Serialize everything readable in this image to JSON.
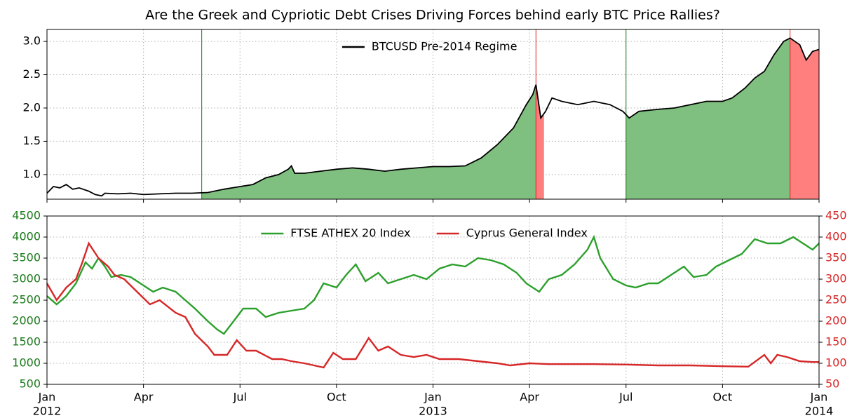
{
  "chart_data": [
    {
      "type": "line",
      "title": "Are the Greek and Cypriotic Debt Crises Driving Forces behind early BTC Price Rallies?",
      "xlim": [
        0,
        24
      ],
      "xticks": [
        0,
        3,
        6,
        9,
        12,
        15,
        18,
        21,
        24
      ],
      "ylim": [
        0.63,
        3.18
      ],
      "yticks": [
        {
          "value": 1,
          "label": "1.0"
        },
        {
          "value": 1.5,
          "label": "1.5"
        },
        {
          "value": 2,
          "label": "2.0"
        },
        {
          "value": 2.5,
          "label": "2.5"
        },
        {
          "value": 3,
          "label": "3.0"
        }
      ],
      "grid": true,
      "legend": "upper center",
      "series": [
        {
          "name": "BTCUSD Pre-2014 Regime",
          "color": "#000000",
          "x": [
            0,
            0.2,
            0.4,
            0.6,
            0.8,
            1.0,
            1.3,
            1.5,
            1.7,
            1.8,
            2.2,
            2.6,
            3,
            3.5,
            4,
            4.5,
            5,
            5.5,
            6,
            6.4,
            6.8,
            7.2,
            7.5,
            7.6,
            7.7,
            8,
            8.5,
            9,
            9.5,
            10,
            10.5,
            11,
            11.5,
            12,
            12.5,
            13,
            13.5,
            14,
            14.5,
            14.9,
            15.1,
            15.2,
            15.35,
            15.5,
            15.7,
            16,
            16.5,
            17,
            17.5,
            17.9,
            18.1,
            18.4,
            19,
            19.5,
            20,
            20.5,
            21,
            21.3,
            21.7,
            22,
            22.3,
            22.6,
            22.9,
            23.1,
            23.4,
            23.6,
            23.8,
            24
          ],
          "values": [
            0.72,
            0.82,
            0.8,
            0.85,
            0.78,
            0.8,
            0.75,
            0.7,
            0.68,
            0.72,
            0.71,
            0.72,
            0.7,
            0.71,
            0.72,
            0.72,
            0.73,
            0.78,
            0.82,
            0.85,
            0.95,
            1.0,
            1.08,
            1.13,
            1.02,
            1.02,
            1.05,
            1.08,
            1.1,
            1.08,
            1.05,
            1.08,
            1.1,
            1.12,
            1.12,
            1.13,
            1.25,
            1.45,
            1.7,
            2.05,
            2.2,
            2.35,
            1.85,
            1.95,
            2.15,
            2.1,
            2.05,
            2.1,
            2.05,
            1.95,
            1.85,
            1.95,
            1.98,
            2.0,
            2.05,
            2.1,
            2.1,
            2.15,
            2.3,
            2.45,
            2.55,
            2.8,
            3.0,
            3.05,
            2.95,
            2.72,
            2.85,
            2.88
          ]
        }
      ],
      "regions": [
        {
          "start": 4.81,
          "end": 15.2,
          "color": "#7fbf7f",
          "line": "#1a7a1a"
        },
        {
          "start": 15.2,
          "end": 15.45,
          "color": "#ff7f7f",
          "line": "#e02020"
        },
        {
          "start": 18.0,
          "end": 23.1,
          "color": "#7fbf7f",
          "line": "#1a7a1a"
        },
        {
          "start": 23.1,
          "end": 24,
          "color": "#ff7f7f",
          "line": "#e02020"
        }
      ]
    },
    {
      "type": "line",
      "xlim": [
        0,
        24
      ],
      "xticks": [
        {
          "value": 0,
          "label": "Jan",
          "year": "2012"
        },
        {
          "value": 3,
          "label": "Apr"
        },
        {
          "value": 6,
          "label": "Jul"
        },
        {
          "value": 9,
          "label": "Oct"
        },
        {
          "value": 12,
          "label": "Jan",
          "year": "2013"
        },
        {
          "value": 15,
          "label": "Apr"
        },
        {
          "value": 18,
          "label": "Jul"
        },
        {
          "value": 21,
          "label": "Oct"
        },
        {
          "value": 24,
          "label": "Jan",
          "year": "2014"
        }
      ],
      "ylim": [
        500,
        4500
      ],
      "yticks": [
        500,
        1000,
        1500,
        2000,
        2500,
        3000,
        3500,
        4000,
        4500
      ],
      "ytick_color": "#1a7a1a",
      "y2lim": [
        50,
        450
      ],
      "y2ticks": [
        50,
        100,
        150,
        200,
        250,
        300,
        350,
        400,
        450
      ],
      "y2tick_color": "#d62728",
      "grid": true,
      "legend": "upper center",
      "series": [
        {
          "name": "FTSE ATHEX 20 Index",
          "color": "#2ca02c",
          "x": [
            0,
            0.3,
            0.6,
            0.9,
            1.2,
            1.4,
            1.6,
            1.8,
            2.0,
            2.3,
            2.6,
            3,
            3.3,
            3.6,
            4,
            4.3,
            4.6,
            5,
            5.3,
            5.5,
            5.8,
            6.1,
            6.5,
            6.8,
            7.2,
            7.6,
            8,
            8.3,
            8.6,
            9,
            9.3,
            9.6,
            9.9,
            10.3,
            10.6,
            11,
            11.4,
            11.8,
            12.2,
            12.6,
            13,
            13.4,
            13.8,
            14.2,
            14.6,
            14.9,
            15.3,
            15.6,
            16,
            16.4,
            16.8,
            17,
            17.2,
            17.6,
            18,
            18.3,
            18.7,
            19,
            19.4,
            19.8,
            20.1,
            20.5,
            20.8,
            21.2,
            21.6,
            22,
            22.4,
            22.8,
            23.2,
            23.6,
            23.8,
            24
          ],
          "values": [
            2600,
            2400,
            2600,
            2900,
            3400,
            3250,
            3500,
            3300,
            3050,
            3100,
            3050,
            2850,
            2700,
            2800,
            2700,
            2500,
            2300,
            2000,
            1800,
            1700,
            2000,
            2300,
            2300,
            2100,
            2200,
            2250,
            2300,
            2500,
            2900,
            2800,
            3100,
            3350,
            2950,
            3150,
            2900,
            3000,
            3100,
            3000,
            3250,
            3350,
            3300,
            3500,
            3450,
            3350,
            3150,
            2900,
            2700,
            3000,
            3100,
            3350,
            3700,
            4000,
            3500,
            3000,
            2850,
            2800,
            2900,
            2900,
            3100,
            3300,
            3050,
            3100,
            3300,
            3450,
            3600,
            3950,
            3850,
            3850,
            4000,
            3800,
            3700,
            3850
          ]
        },
        {
          "name": "Cyprus General Index",
          "color": "#d62728",
          "axis": "y2",
          "x": [
            0,
            0.3,
            0.6,
            0.9,
            1.1,
            1.3,
            1.6,
            1.9,
            2.1,
            2.4,
            2.8,
            3.2,
            3.5,
            4,
            4.3,
            4.6,
            5,
            5.2,
            5.6,
            5.9,
            6.2,
            6.5,
            7,
            7.3,
            7.6,
            8,
            8.3,
            8.6,
            8.9,
            9.2,
            9.6,
            10,
            10.3,
            10.6,
            11,
            11.4,
            11.8,
            12.2,
            12.8,
            13.4,
            14,
            14.4,
            15,
            15.6,
            16,
            17,
            18,
            19,
            20,
            21,
            21.8,
            22.3,
            22.5,
            22.7,
            23,
            23.4,
            23.8,
            24
          ],
          "values": [
            290,
            250,
            280,
            300,
            340,
            385,
            350,
            330,
            310,
            300,
            270,
            240,
            250,
            220,
            210,
            170,
            140,
            120,
            120,
            155,
            130,
            130,
            110,
            110,
            105,
            100,
            95,
            90,
            125,
            110,
            110,
            160,
            130,
            140,
            120,
            115,
            120,
            110,
            110,
            105,
            100,
            95,
            100,
            98,
            98,
            98,
            97,
            95,
            95,
            93,
            92,
            120,
            100,
            120,
            115,
            105,
            103,
            103
          ]
        }
      ]
    }
  ]
}
